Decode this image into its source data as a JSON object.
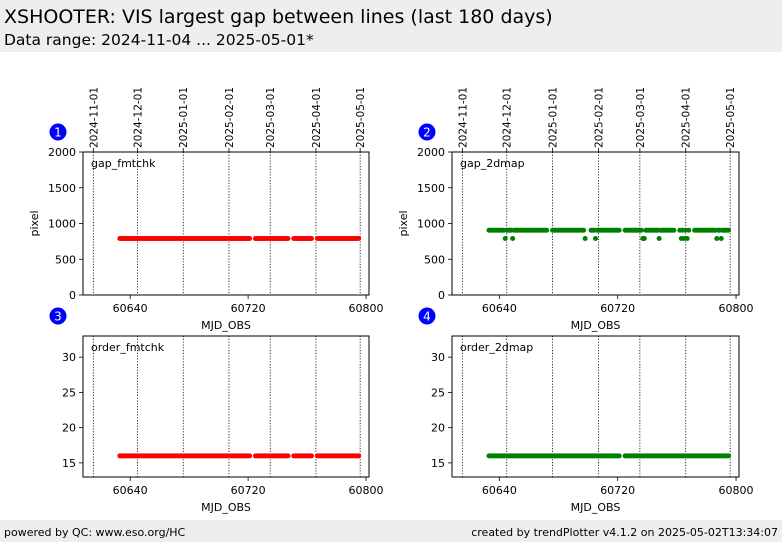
{
  "header": {
    "title": "XSHOOTER: VIS largest gap between lines (last 180 days)",
    "subtitle": "Data range: 2024-11-04 ... 2025-05-01*"
  },
  "footer": {
    "left": "powered by QC: www.eso.org/HC",
    "right": "created by trendPlotter v4.1.2 on 2025-05-02T13:34:07"
  },
  "colors": {
    "red": "#ff0000",
    "green": "#008000",
    "badge": "#0000ff"
  },
  "date_markers": [
    {
      "label": "2024-11-01",
      "mjd": 60615
    },
    {
      "label": "2024-12-01",
      "mjd": 60645
    },
    {
      "label": "2025-01-01",
      "mjd": 60676
    },
    {
      "label": "2025-02-01",
      "mjd": 60707
    },
    {
      "label": "2025-03-01",
      "mjd": 60735
    },
    {
      "label": "2025-04-01",
      "mjd": 60766
    },
    {
      "label": "2025-05-01",
      "mjd": 60796
    }
  ],
  "chart_data": [
    {
      "type": "scatter",
      "badge": "1",
      "label": "gap_fmtchk",
      "xlabel": "MJD_OBS",
      "ylabel": "pixel",
      "xlim": [
        60608,
        60802
      ],
      "ylim": [
        0,
        2000
      ],
      "xticks": [
        60640,
        60720,
        60800
      ],
      "yticks": [
        0,
        500,
        1000,
        1500,
        2000
      ],
      "color": "#ff0000",
      "x_start": 60633,
      "x_end": 60795,
      "gaps": [
        [
          60722,
          60724
        ],
        [
          60748,
          60750
        ],
        [
          60764,
          60766
        ]
      ],
      "y_default": 790,
      "y_exceptions": []
    },
    {
      "type": "scatter",
      "badge": "2",
      "label": "gap_2dmap",
      "xlabel": "MJD_OBS",
      "ylabel": "pixel",
      "xlim": [
        60608,
        60802
      ],
      "ylim": [
        0,
        2000
      ],
      "xticks": [
        60640,
        60720,
        60800
      ],
      "yticks": [
        0,
        500,
        1000,
        1500,
        2000
      ],
      "color": "#008000",
      "x_start": 60633,
      "x_end": 60795,
      "gaps": [
        [
          60673,
          60675
        ],
        [
          60699,
          60701
        ],
        [
          60722,
          60724
        ],
        [
          60759,
          60761
        ],
        [
          60769,
          60771
        ]
      ],
      "y_default": 905,
      "y_exceptions": [
        [
          60644,
          790
        ],
        [
          60649,
          790
        ],
        [
          60698,
          790
        ],
        [
          60705,
          790
        ],
        [
          60737,
          790
        ],
        [
          60738,
          790
        ],
        [
          60748,
          790
        ],
        [
          60763,
          790
        ],
        [
          60765,
          790
        ],
        [
          60767,
          790
        ],
        [
          60787,
          790
        ],
        [
          60790,
          790
        ]
      ]
    },
    {
      "type": "scatter",
      "badge": "3",
      "label": "order_fmtchk",
      "xlabel": "MJD_OBS",
      "ylabel": "",
      "xlim": [
        60608,
        60802
      ],
      "ylim": [
        13,
        33
      ],
      "xticks": [
        60640,
        60720,
        60800
      ],
      "yticks": [
        15,
        20,
        25,
        30
      ],
      "color": "#ff0000",
      "x_start": 60633,
      "x_end": 60795,
      "gaps": [
        [
          60722,
          60724
        ],
        [
          60748,
          60750
        ],
        [
          60764,
          60766
        ]
      ],
      "y_default": 16,
      "y_exceptions": []
    },
    {
      "type": "scatter",
      "badge": "4",
      "label": "order_2dmap",
      "xlabel": "MJD_OBS",
      "ylabel": "",
      "xlim": [
        60608,
        60802
      ],
      "ylim": [
        13,
        33
      ],
      "xticks": [
        60640,
        60720,
        60800
      ],
      "yticks": [
        15,
        20,
        25,
        30
      ],
      "color": "#008000",
      "x_start": 60633,
      "x_end": 60795,
      "gaps": [
        [
          60722,
          60724
        ]
      ],
      "y_default": 16,
      "y_exceptions": []
    }
  ]
}
